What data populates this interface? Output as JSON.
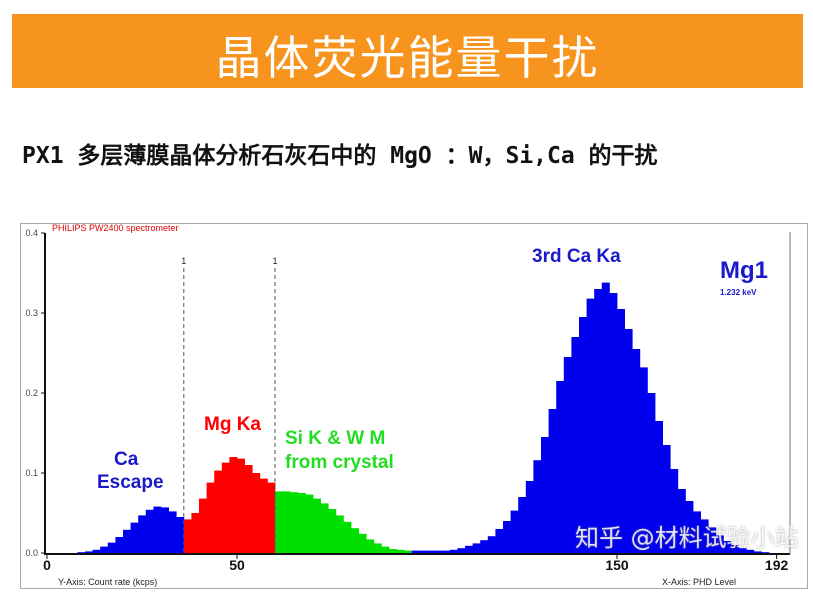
{
  "slide": {
    "title": "晶体荧光能量干扰",
    "subtitle": "PX1 多层薄膜晶体分析石灰石中的 MgO ：W，Si,Ca 的干扰",
    "banner_color": "#f7941d",
    "watermark": "知乎 @材料试验小站"
  },
  "chart_data": {
    "type": "bar",
    "title": "PHILIPS PW2400 spectrometer",
    "xlabel": "X-Axis: PHD Level",
    "ylabel": "Y-Axis: Count rate (kcps)",
    "xlim": [
      0,
      200
    ],
    "ylim": [
      0,
      0.4
    ],
    "x_tick_labels": [
      "0",
      "50",
      "150",
      "192"
    ],
    "x_tick_values": [
      0,
      50,
      150,
      192
    ],
    "y_tick_labels": [
      "0.0",
      "0.1",
      "0.2",
      "0.3",
      "0.4"
    ],
    "y_tick_values": [
      0,
      0.1,
      0.2,
      0.3,
      0.4
    ],
    "grid": false,
    "bin_width": 2,
    "x": [
      0,
      2,
      4,
      6,
      8,
      10,
      12,
      14,
      16,
      18,
      20,
      22,
      24,
      26,
      28,
      30,
      32,
      34,
      36,
      38,
      40,
      42,
      44,
      46,
      48,
      50,
      52,
      54,
      56,
      58,
      60,
      62,
      64,
      66,
      68,
      70,
      72,
      74,
      76,
      78,
      80,
      82,
      84,
      86,
      88,
      90,
      92,
      94,
      96,
      98,
      100,
      102,
      104,
      106,
      108,
      110,
      112,
      114,
      116,
      118,
      120,
      122,
      124,
      126,
      128,
      130,
      132,
      134,
      136,
      138,
      140,
      142,
      144,
      146,
      148,
      150,
      152,
      154,
      156,
      158,
      160,
      162,
      164,
      166,
      168,
      170,
      172,
      174,
      176,
      178,
      180,
      182,
      184,
      186,
      188,
      190,
      192
    ],
    "values": [
      0,
      0,
      0,
      0,
      0.001,
      0.002,
      0.004,
      0.008,
      0.013,
      0.02,
      0.029,
      0.038,
      0.047,
      0.054,
      0.058,
      0.057,
      0.052,
      0.045,
      0.042,
      0.05,
      0.068,
      0.088,
      0.103,
      0.113,
      0.12,
      0.118,
      0.11,
      0.1,
      0.093,
      0.088,
      0.077,
      0.077,
      0.076,
      0.075,
      0.073,
      0.068,
      0.062,
      0.055,
      0.047,
      0.039,
      0.031,
      0.024,
      0.017,
      0.012,
      0.008,
      0.005,
      0.004,
      0.003,
      0.003,
      0.003,
      0.003,
      0.003,
      0.003,
      0.004,
      0.006,
      0.009,
      0.012,
      0.016,
      0.021,
      0.03,
      0.04,
      0.053,
      0.07,
      0.09,
      0.116,
      0.145,
      0.18,
      0.215,
      0.245,
      0.27,
      0.295,
      0.318,
      0.33,
      0.338,
      0.325,
      0.305,
      0.28,
      0.255,
      0.232,
      0.2,
      0.165,
      0.135,
      0.105,
      0.08,
      0.065,
      0.052,
      0.042,
      0.032,
      0.022,
      0.015,
      0.01,
      0.006,
      0.004,
      0.002,
      0.001,
      0,
      0
    ],
    "regions": [
      {
        "from": 0,
        "to": 36,
        "color": "#0000ee"
      },
      {
        "from": 36,
        "to": 60,
        "color": "#ff0000"
      },
      {
        "from": 60,
        "to": 96,
        "color": "#00e000"
      },
      {
        "from": 96,
        "to": 200,
        "color": "#0000ee"
      }
    ],
    "window_markers": [
      36,
      60
    ],
    "window_marker_label": "1",
    "annotations": [
      {
        "text": "Ca",
        "color": "#1a1acc"
      },
      {
        "text": "Escape",
        "color": "#1a1acc"
      },
      {
        "text": "Mg Ka",
        "color": "#ff0000"
      },
      {
        "text": "Si K & W M",
        "color": "#22dd22"
      },
      {
        "text": "from crystal",
        "color": "#22dd22"
      },
      {
        "text": "3rd Ca Ka",
        "color": "#1a1acc"
      },
      {
        "text": "Mg1",
        "color": "#1a1acc"
      },
      {
        "text": "1.232 keV",
        "color": "#1a1acc"
      }
    ]
  }
}
